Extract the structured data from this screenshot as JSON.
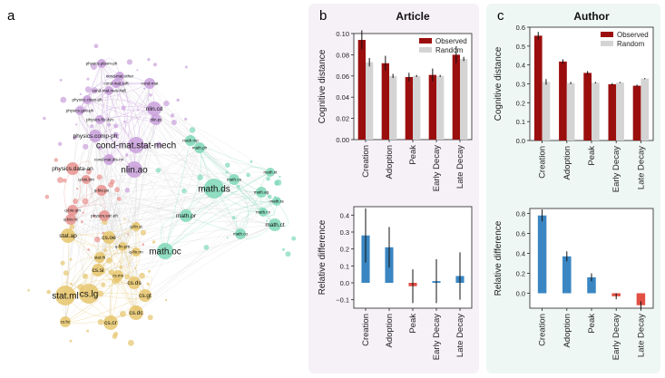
{
  "panel_letters": {
    "a": "a",
    "b": "b",
    "c": "c"
  },
  "network": {
    "node_labels": [
      "physics.plasm-ph",
      "cond-mat.other",
      "cond-mat.soft",
      "cond-mat.mes-hall",
      "cond-mat",
      "nlin.cd",
      "nlin.ps",
      "physics.class-ph",
      "physics.geo-ph",
      "physics.flu-dyn",
      "physics.comp-ph",
      "cond-mat.stat-mech",
      "cond-mat.dis-nn",
      "physics.data-an",
      "nlin.ao",
      "q-bio.pe",
      "q-bio.qm",
      "q-bio.nc",
      "physics.soc-ph",
      "stat.ap",
      "cs.oe",
      "cs.si",
      "stat.ml",
      "cs.lg",
      "cs.cr",
      "cs.dc",
      "cs.gt",
      "cs.ds",
      "cs.ms",
      "cs.hc",
      "math.mp",
      "math.ph",
      "math.ds",
      "math.ca",
      "math.ag",
      "math.pr",
      "math.oc",
      "math.ct",
      "math.co",
      "math.nt",
      "math.ra",
      "math.cv",
      "q-fin.st",
      "q-fin.rm",
      "q-fin.pm",
      "q-bio.bm",
      "stat.th"
    ],
    "colors": {
      "physics": "#c9a0dc",
      "bio": "#e8928e",
      "cs_stat": "#e6c56b",
      "math": "#7fd8b8",
      "edge": "#d8d8d8"
    }
  },
  "colors": {
    "observed": "#9b0e0e",
    "random": "#d4d4d4",
    "positive": "#3a86c2",
    "negative": "#e14f45",
    "author_bg": "#eef7f4",
    "article_bg": "#f6f1f7"
  },
  "chart_data": [
    {
      "type": "bar",
      "panel": "b",
      "title": "Article",
      "ylabel": "Cognitive distance",
      "categories": [
        "Creation",
        "Adoption",
        "Peak",
        "Early Decay",
        "Late Decay"
      ],
      "ylim": [
        0,
        0.1
      ],
      "yticks": [
        "0.00",
        "0.02",
        "0.04",
        "0.06",
        "0.08",
        "0.10"
      ],
      "legend": "top-right",
      "series": [
        {
          "name": "Observed",
          "values": [
            0.094,
            0.072,
            0.059,
            0.061,
            0.08
          ],
          "err": [
            0.009,
            0.007,
            0.004,
            0.006,
            0.008
          ]
        },
        {
          "name": "Random",
          "values": [
            0.073,
            0.06,
            0.06,
            0.06,
            0.076
          ],
          "err": [
            0.004,
            0.002,
            0.001,
            0.001,
            0.002
          ]
        }
      ]
    },
    {
      "type": "bar",
      "panel": "b-bottom",
      "ylabel": "Relative difference",
      "categories": [
        "Creation",
        "Adoption",
        "Peak",
        "Early Decay",
        "Late Decay"
      ],
      "ylim": [
        -0.15,
        0.45
      ],
      "yticks": [
        "−0.1",
        "0.0",
        "0.1",
        "0.2",
        "0.3",
        "0.4"
      ],
      "values": [
        0.28,
        0.21,
        -0.02,
        0.01,
        0.04
      ],
      "err": [
        0.16,
        0.12,
        0.1,
        0.13,
        0.14
      ]
    },
    {
      "type": "bar",
      "panel": "c",
      "title": "Author",
      "ylabel": "Cognitive distance",
      "categories": [
        "Creation",
        "Adoption",
        "Peak",
        "Early Decay",
        "Late Decay"
      ],
      "ylim": [
        0,
        0.6
      ],
      "yticks": [
        "0.0",
        "0.1",
        "0.2",
        "0.3",
        "0.4",
        "0.5",
        "0.6"
      ],
      "legend": "top-right",
      "series": [
        {
          "name": "Observed",
          "values": [
            0.555,
            0.418,
            0.358,
            0.298,
            0.29
          ],
          "err": [
            0.02,
            0.012,
            0.01,
            0.006,
            0.006
          ]
        },
        {
          "name": "Random",
          "values": [
            0.31,
            0.304,
            0.306,
            0.307,
            0.328
          ],
          "err": [
            0.015,
            0.006,
            0.004,
            0.003,
            0.003
          ]
        }
      ]
    },
    {
      "type": "bar",
      "panel": "c-bottom",
      "ylabel": "Relative difference",
      "categories": [
        "Creation",
        "Adoption",
        "Peak",
        "Early Decay",
        "Late Decay"
      ],
      "ylim": [
        -0.15,
        0.85
      ],
      "yticks": [
        "0.0",
        "0.2",
        "0.4",
        "0.6",
        "0.8"
      ],
      "values": [
        0.78,
        0.37,
        0.16,
        -0.03,
        -0.12
      ],
      "err": [
        0.06,
        0.05,
        0.04,
        0.03,
        0.04
      ]
    }
  ]
}
